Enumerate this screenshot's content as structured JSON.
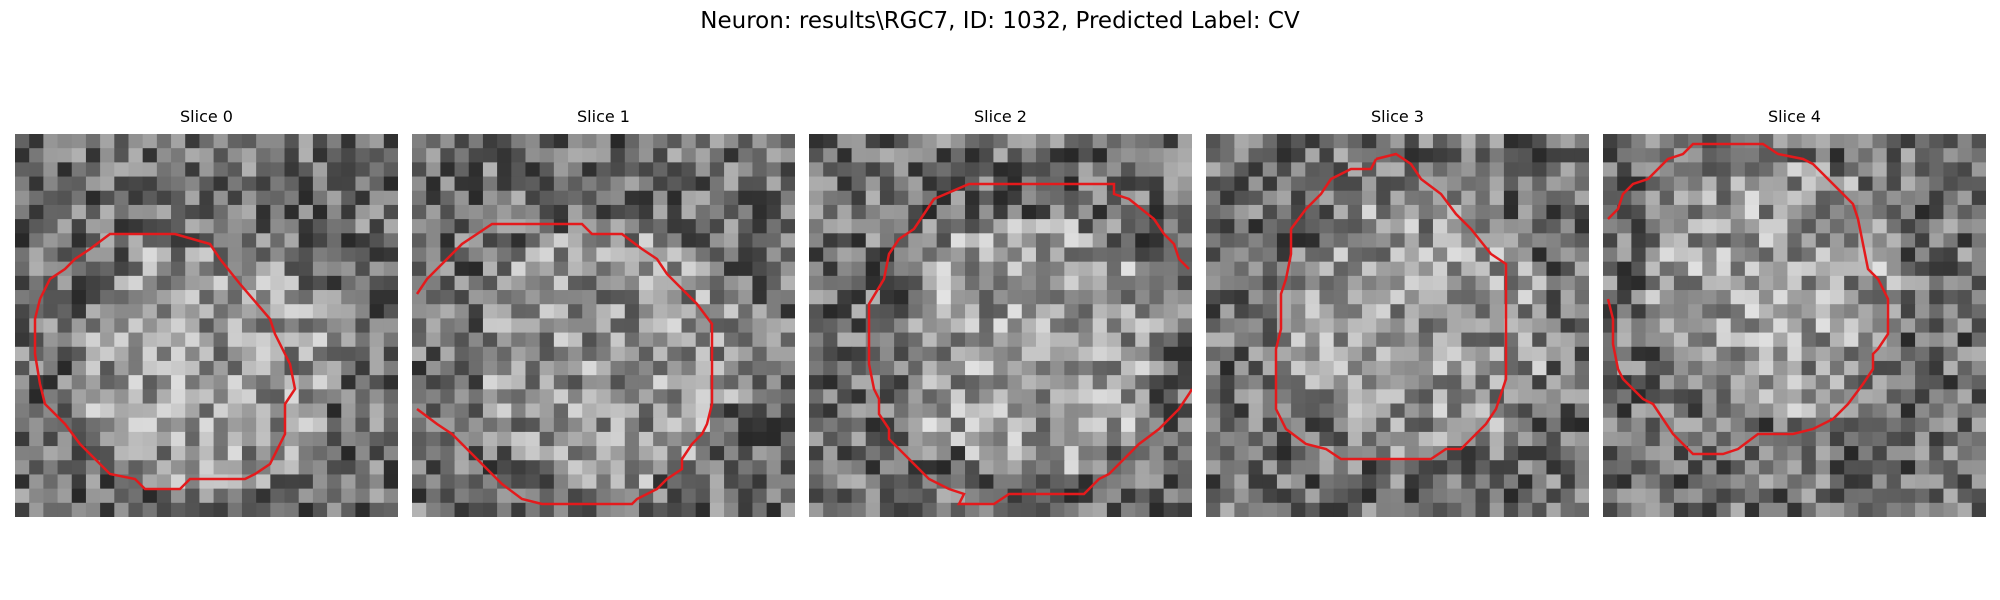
{
  "figure": {
    "title": "Neuron: results\\RGC7, ID: 1032, Predicted Label: CV",
    "contour_color": "#e41a1c",
    "slices": [
      {
        "title": "Slice 0",
        "seed": 11,
        "center": [
          0.5,
          0.62
        ],
        "brightness": 0.62
      },
      {
        "title": "Slice 1",
        "seed": 23,
        "center": [
          0.52,
          0.58
        ],
        "brightness": 0.55
      },
      {
        "title": "Slice 2",
        "seed": 37,
        "center": [
          0.58,
          0.55
        ],
        "brightness": 0.75
      },
      {
        "title": "Slice 3",
        "seed": 41,
        "center": [
          0.55,
          0.5
        ],
        "brightness": 0.6
      },
      {
        "title": "Slice 4",
        "seed": 59,
        "center": [
          0.45,
          0.4
        ],
        "brightness": 0.7
      }
    ]
  }
}
